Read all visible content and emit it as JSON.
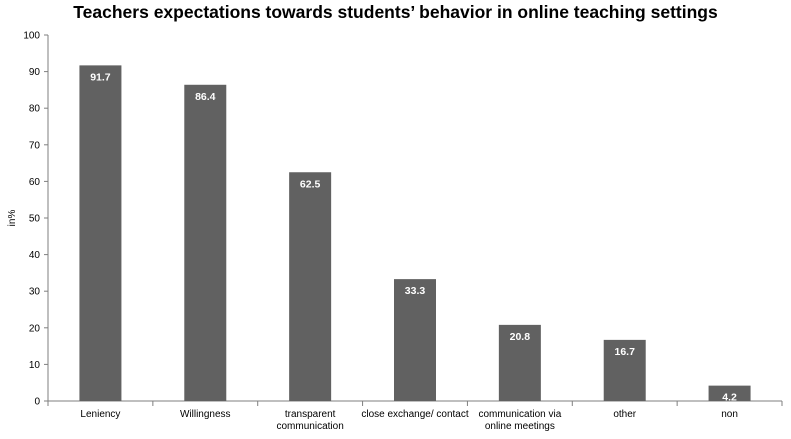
{
  "chart_data": {
    "type": "bar",
    "title": "Teachers expectations towards students’ behavior in online teaching settings",
    "ylabel": "in%",
    "xlabel": "",
    "ylim": [
      0,
      100
    ],
    "yticks": [
      0,
      10,
      20,
      30,
      40,
      50,
      60,
      70,
      80,
      90,
      100
    ],
    "categories": [
      [
        "Leniency"
      ],
      [
        "Willingness"
      ],
      [
        "transparent",
        "communication"
      ],
      [
        "close exchange/ contact"
      ],
      [
        "communication via",
        "online meetings"
      ],
      [
        "other"
      ],
      [
        "non"
      ]
    ],
    "values": [
      91.7,
      86.4,
      62.5,
      33.3,
      20.8,
      16.7,
      4.2
    ],
    "value_labels": [
      "91.7",
      "86.4",
      "62.5",
      "33.3",
      "20.8",
      "16.7",
      "4.2"
    ],
    "bar_color": "#616161",
    "grid": false,
    "legend": "none"
  }
}
